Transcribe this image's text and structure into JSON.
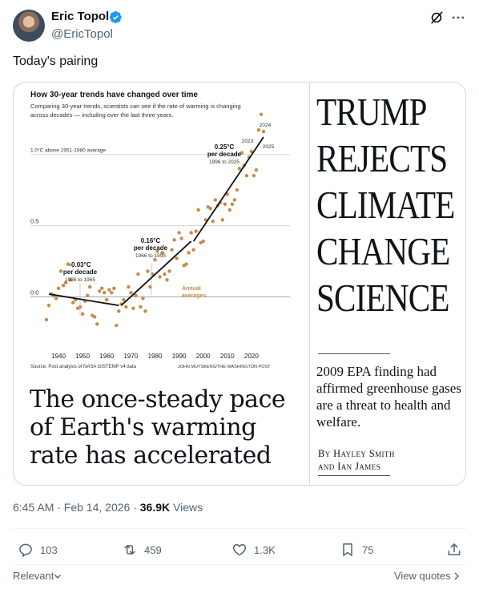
{
  "author": {
    "name": "Eric Topol",
    "handle": "@EricTopol"
  },
  "tweet": {
    "text": "Today's pairing"
  },
  "chart": {
    "title": "How 30-year trends have changed over time",
    "subtitle": "Comparing 30-year trends, scientists can see if the rate of warming is changing across decades — including over the last three years.",
    "source": "Source: Post analysis of NASA GISTEMP v4 data",
    "credit": "JOHN MUYSKENS/THE WASHINGTON POST"
  },
  "chart_data": {
    "type": "scatter",
    "title": "How 30-year trends have changed over time",
    "y_tick_labels": [
      "1.0°C above 1951-1980 average",
      "0.5",
      "0.0"
    ],
    "x_tick_labels": [
      "1940",
      "1950",
      "1960",
      "1970",
      "1980",
      "1990",
      "2000",
      "2010",
      "2020"
    ],
    "xlim": [
      1934,
      2027
    ],
    "ylim": [
      -0.25,
      1.25
    ],
    "series": [
      {
        "name": "Annual averages",
        "points": [
          [
            1935,
            -0.16
          ],
          [
            1936,
            -0.06
          ],
          [
            1937,
            0.02
          ],
          [
            1938,
            0.01
          ],
          [
            1939,
            -0.01
          ],
          [
            1940,
            0.06
          ],
          [
            1941,
            0.18
          ],
          [
            1942,
            0.08
          ],
          [
            1943,
            0.1
          ],
          [
            1944,
            0.23
          ],
          [
            1945,
            0.12
          ],
          [
            1946,
            -0.04
          ],
          [
            1947,
            -0.02
          ],
          [
            1948,
            -0.08
          ],
          [
            1949,
            -0.07
          ],
          [
            1950,
            -0.12
          ],
          [
            1951,
            -0.03
          ],
          [
            1952,
            0.01
          ],
          [
            1953,
            0.07
          ],
          [
            1954,
            -0.13
          ],
          [
            1955,
            -0.14
          ],
          [
            1956,
            -0.19
          ],
          [
            1957,
            0.04
          ],
          [
            1958,
            0.06
          ],
          [
            1959,
            0.03
          ],
          [
            1960,
            -0.02
          ],
          [
            1961,
            0.05
          ],
          [
            1962,
            0.03
          ],
          [
            1963,
            0.06
          ],
          [
            1964,
            -0.2
          ],
          [
            1965,
            -0.1
          ],
          [
            1966,
            -0.05
          ],
          [
            1967,
            -0.02
          ],
          [
            1968,
            -0.07
          ],
          [
            1969,
            0.07
          ],
          [
            1970,
            0.03
          ],
          [
            1971,
            -0.08
          ],
          [
            1972,
            0.01
          ],
          [
            1973,
            0.16
          ],
          [
            1974,
            -0.07
          ],
          [
            1975,
            -0.01
          ],
          [
            1976,
            -0.1
          ],
          [
            1977,
            0.18
          ],
          [
            1978,
            0.07
          ],
          [
            1979,
            0.16
          ],
          [
            1980,
            0.26
          ],
          [
            1981,
            0.32
          ],
          [
            1982,
            0.14
          ],
          [
            1983,
            0.31
          ],
          [
            1984,
            0.16
          ],
          [
            1985,
            0.12
          ],
          [
            1986,
            0.18
          ],
          [
            1987,
            0.33
          ],
          [
            1988,
            0.4
          ],
          [
            1989,
            0.27
          ],
          [
            1990,
            0.45
          ],
          [
            1991,
            0.41
          ],
          [
            1992,
            0.22
          ],
          [
            1993,
            0.23
          ],
          [
            1994,
            0.31
          ],
          [
            1995,
            0.45
          ],
          [
            1996,
            0.33
          ],
          [
            1997,
            0.46
          ],
          [
            1998,
            0.61
          ],
          [
            1999,
            0.38
          ],
          [
            2000,
            0.39
          ],
          [
            2001,
            0.54
          ],
          [
            2002,
            0.63
          ],
          [
            2003,
            0.62
          ],
          [
            2004,
            0.53
          ],
          [
            2005,
            0.68
          ],
          [
            2006,
            0.64
          ],
          [
            2007,
            0.66
          ],
          [
            2008,
            0.54
          ],
          [
            2009,
            0.65
          ],
          [
            2010,
            0.72
          ],
          [
            2011,
            0.61
          ],
          [
            2012,
            0.65
          ],
          [
            2013,
            0.68
          ],
          [
            2014,
            0.75
          ],
          [
            2015,
            0.9
          ],
          [
            2016,
            1.01
          ],
          [
            2017,
            0.92
          ],
          [
            2018,
            0.85
          ],
          [
            2019,
            0.98
          ],
          [
            2020,
            1.02
          ],
          [
            2021,
            0.85
          ],
          [
            2022,
            0.89
          ],
          [
            2023,
            1.17
          ],
          [
            2024,
            1.28
          ],
          [
            2025,
            1.16
          ]
        ]
      }
    ],
    "trend_lines": [
      {
        "from": [
          1936,
          0.02
        ],
        "to": [
          1965,
          -0.06
        ]
      },
      {
        "from": [
          1966,
          -0.06
        ],
        "to": [
          1995,
          0.39
        ]
      },
      {
        "from": [
          1996,
          0.39
        ],
        "to": [
          2025,
          1.12
        ]
      }
    ],
    "annotations": [
      {
        "value": "-0.03°C",
        "label": "per decade",
        "years": "1936 to 1965"
      },
      {
        "value": "0.16°C",
        "label": "per decade",
        "years": "1966 to 1995"
      },
      {
        "value": "0.25°C",
        "label": "per decade",
        "years": "1996 to 2025"
      }
    ],
    "point_labels": [
      "2024",
      "2023",
      "2025"
    ],
    "series_label": [
      "Annual",
      "averages"
    ],
    "point_color": "#c8894a"
  },
  "headline_left": "The once-steady pace of Earth's warming rate has accelerated",
  "headline_right": [
    "TRUMP",
    "REJECTS",
    "CLIMATE",
    "CHANGE",
    "SCIENCE"
  ],
  "dek": "2009 EPA finding had affirmed greenhouse gases are a threat to health and welfare.",
  "byline": [
    "By Hayley Smith",
    "and Ian James"
  ],
  "meta": {
    "time": "6:45 AM · Feb 14, 2026 · ",
    "views_count": "36.9K",
    "views_label": " Views"
  },
  "actions": {
    "replies": "103",
    "reposts": "459",
    "likes": "1.3K",
    "bookmarks": "75"
  },
  "footer": {
    "relevant": "Relevant",
    "view_quotes": "View quotes"
  },
  "colors": {
    "verified": "#1d9bf0",
    "muted": "#536471"
  }
}
